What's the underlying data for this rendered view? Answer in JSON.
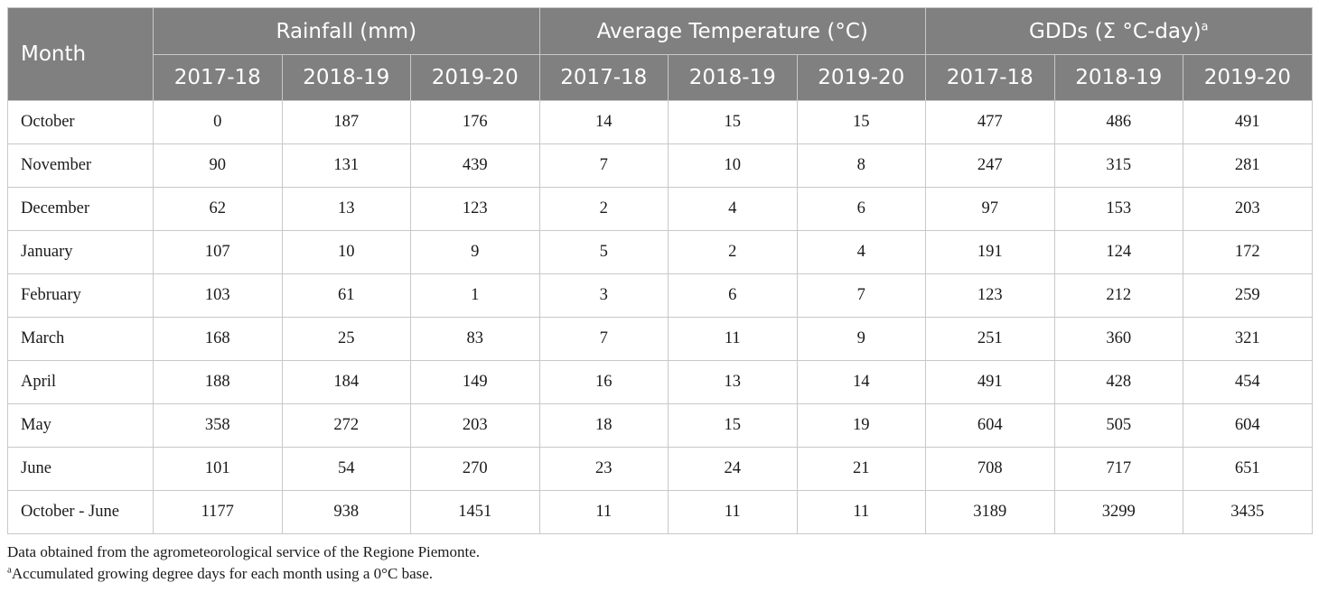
{
  "table": {
    "month_header": "Month",
    "groups": [
      {
        "label": "Rainfall (mm)",
        "sup": ""
      },
      {
        "label": "Average Temperature (°C)",
        "sup": ""
      },
      {
        "label": "GDDs (Σ °C-day)",
        "sup": "a"
      }
    ],
    "years": [
      "2017-18",
      "2018-19",
      "2019-20"
    ],
    "rows": [
      {
        "month": "October",
        "values": [
          "0",
          "187",
          "176",
          "14",
          "15",
          "15",
          "477",
          "486",
          "491"
        ]
      },
      {
        "month": "November",
        "values": [
          "90",
          "131",
          "439",
          "7",
          "10",
          "8",
          "247",
          "315",
          "281"
        ]
      },
      {
        "month": "December",
        "values": [
          "62",
          "13",
          "123",
          "2",
          "4",
          "6",
          "97",
          "153",
          "203"
        ]
      },
      {
        "month": "January",
        "values": [
          "107",
          "10",
          "9",
          "5",
          "2",
          "4",
          "191",
          "124",
          "172"
        ]
      },
      {
        "month": "February",
        "values": [
          "103",
          "61",
          "1",
          "3",
          "6",
          "7",
          "123",
          "212",
          "259"
        ]
      },
      {
        "month": "March",
        "values": [
          "168",
          "25",
          "83",
          "7",
          "11",
          "9",
          "251",
          "360",
          "321"
        ]
      },
      {
        "month": "April",
        "values": [
          "188",
          "184",
          "149",
          "16",
          "13",
          "14",
          "491",
          "428",
          "454"
        ]
      },
      {
        "month": "May",
        "values": [
          "358",
          "272",
          "203",
          "18",
          "15",
          "19",
          "604",
          "505",
          "604"
        ]
      },
      {
        "month": "June",
        "values": [
          "101",
          "54",
          "270",
          "23",
          "24",
          "21",
          "708",
          "717",
          "651"
        ]
      },
      {
        "month": "October - June",
        "values": [
          "1177",
          "938",
          "1451",
          "11",
          "11",
          "11",
          "3189",
          "3299",
          "3435"
        ]
      }
    ]
  },
  "notes": {
    "line1": "Data obtained from the agrometeorological service of the Regione Piemonte.",
    "line2_sup": "a",
    "line2": "Accumulated growing degree days for each month using a 0°C base."
  },
  "colors": {
    "header_bg": "#808080",
    "header_text": "#ffffff",
    "grid": "#c8c8c8"
  }
}
